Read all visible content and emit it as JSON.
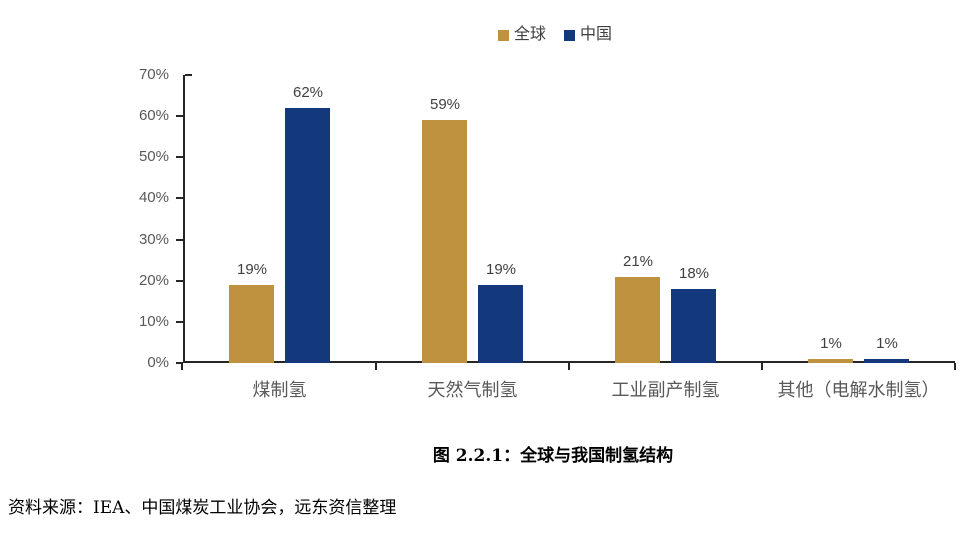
{
  "chart_data": {
    "type": "bar",
    "title": "",
    "categories": [
      "煤制氢",
      "天然气制氢",
      "工业副产制氢",
      "其他（电解水制氢）"
    ],
    "series": [
      {
        "id": "global",
        "name": "全球",
        "color": "#BE923E",
        "values": [
          19,
          59,
          21,
          1
        ]
      },
      {
        "id": "china",
        "name": "中国",
        "color": "#13397C",
        "values": [
          62,
          19,
          18,
          1
        ]
      }
    ],
    "data_labels": {
      "global": [
        "19%",
        "59%",
        "21%",
        "1%"
      ],
      "china": [
        "62%",
        "19%",
        "18%",
        "1%"
      ]
    },
    "value_suffix": "%",
    "ylim": [
      0,
      70
    ],
    "ytick_step": 10,
    "ytick_labels": [
      "0%",
      "10%",
      "20%",
      "30%",
      "40%",
      "50%",
      "60%",
      "70%"
    ],
    "grid": false,
    "legend_position": "top-center",
    "xlabel": "",
    "ylabel": ""
  },
  "caption": "图 2.2.1：全球与我国制氢结构",
  "source_note": "资料来源：IEA、中国煤炭工业协会，远东资信整理",
  "colors": {
    "series_global": "#BE923E",
    "series_china": "#13397C",
    "axis_line": "#262626",
    "axis_text": "#595959",
    "label_text": "#404040",
    "background": "#ffffff"
  }
}
